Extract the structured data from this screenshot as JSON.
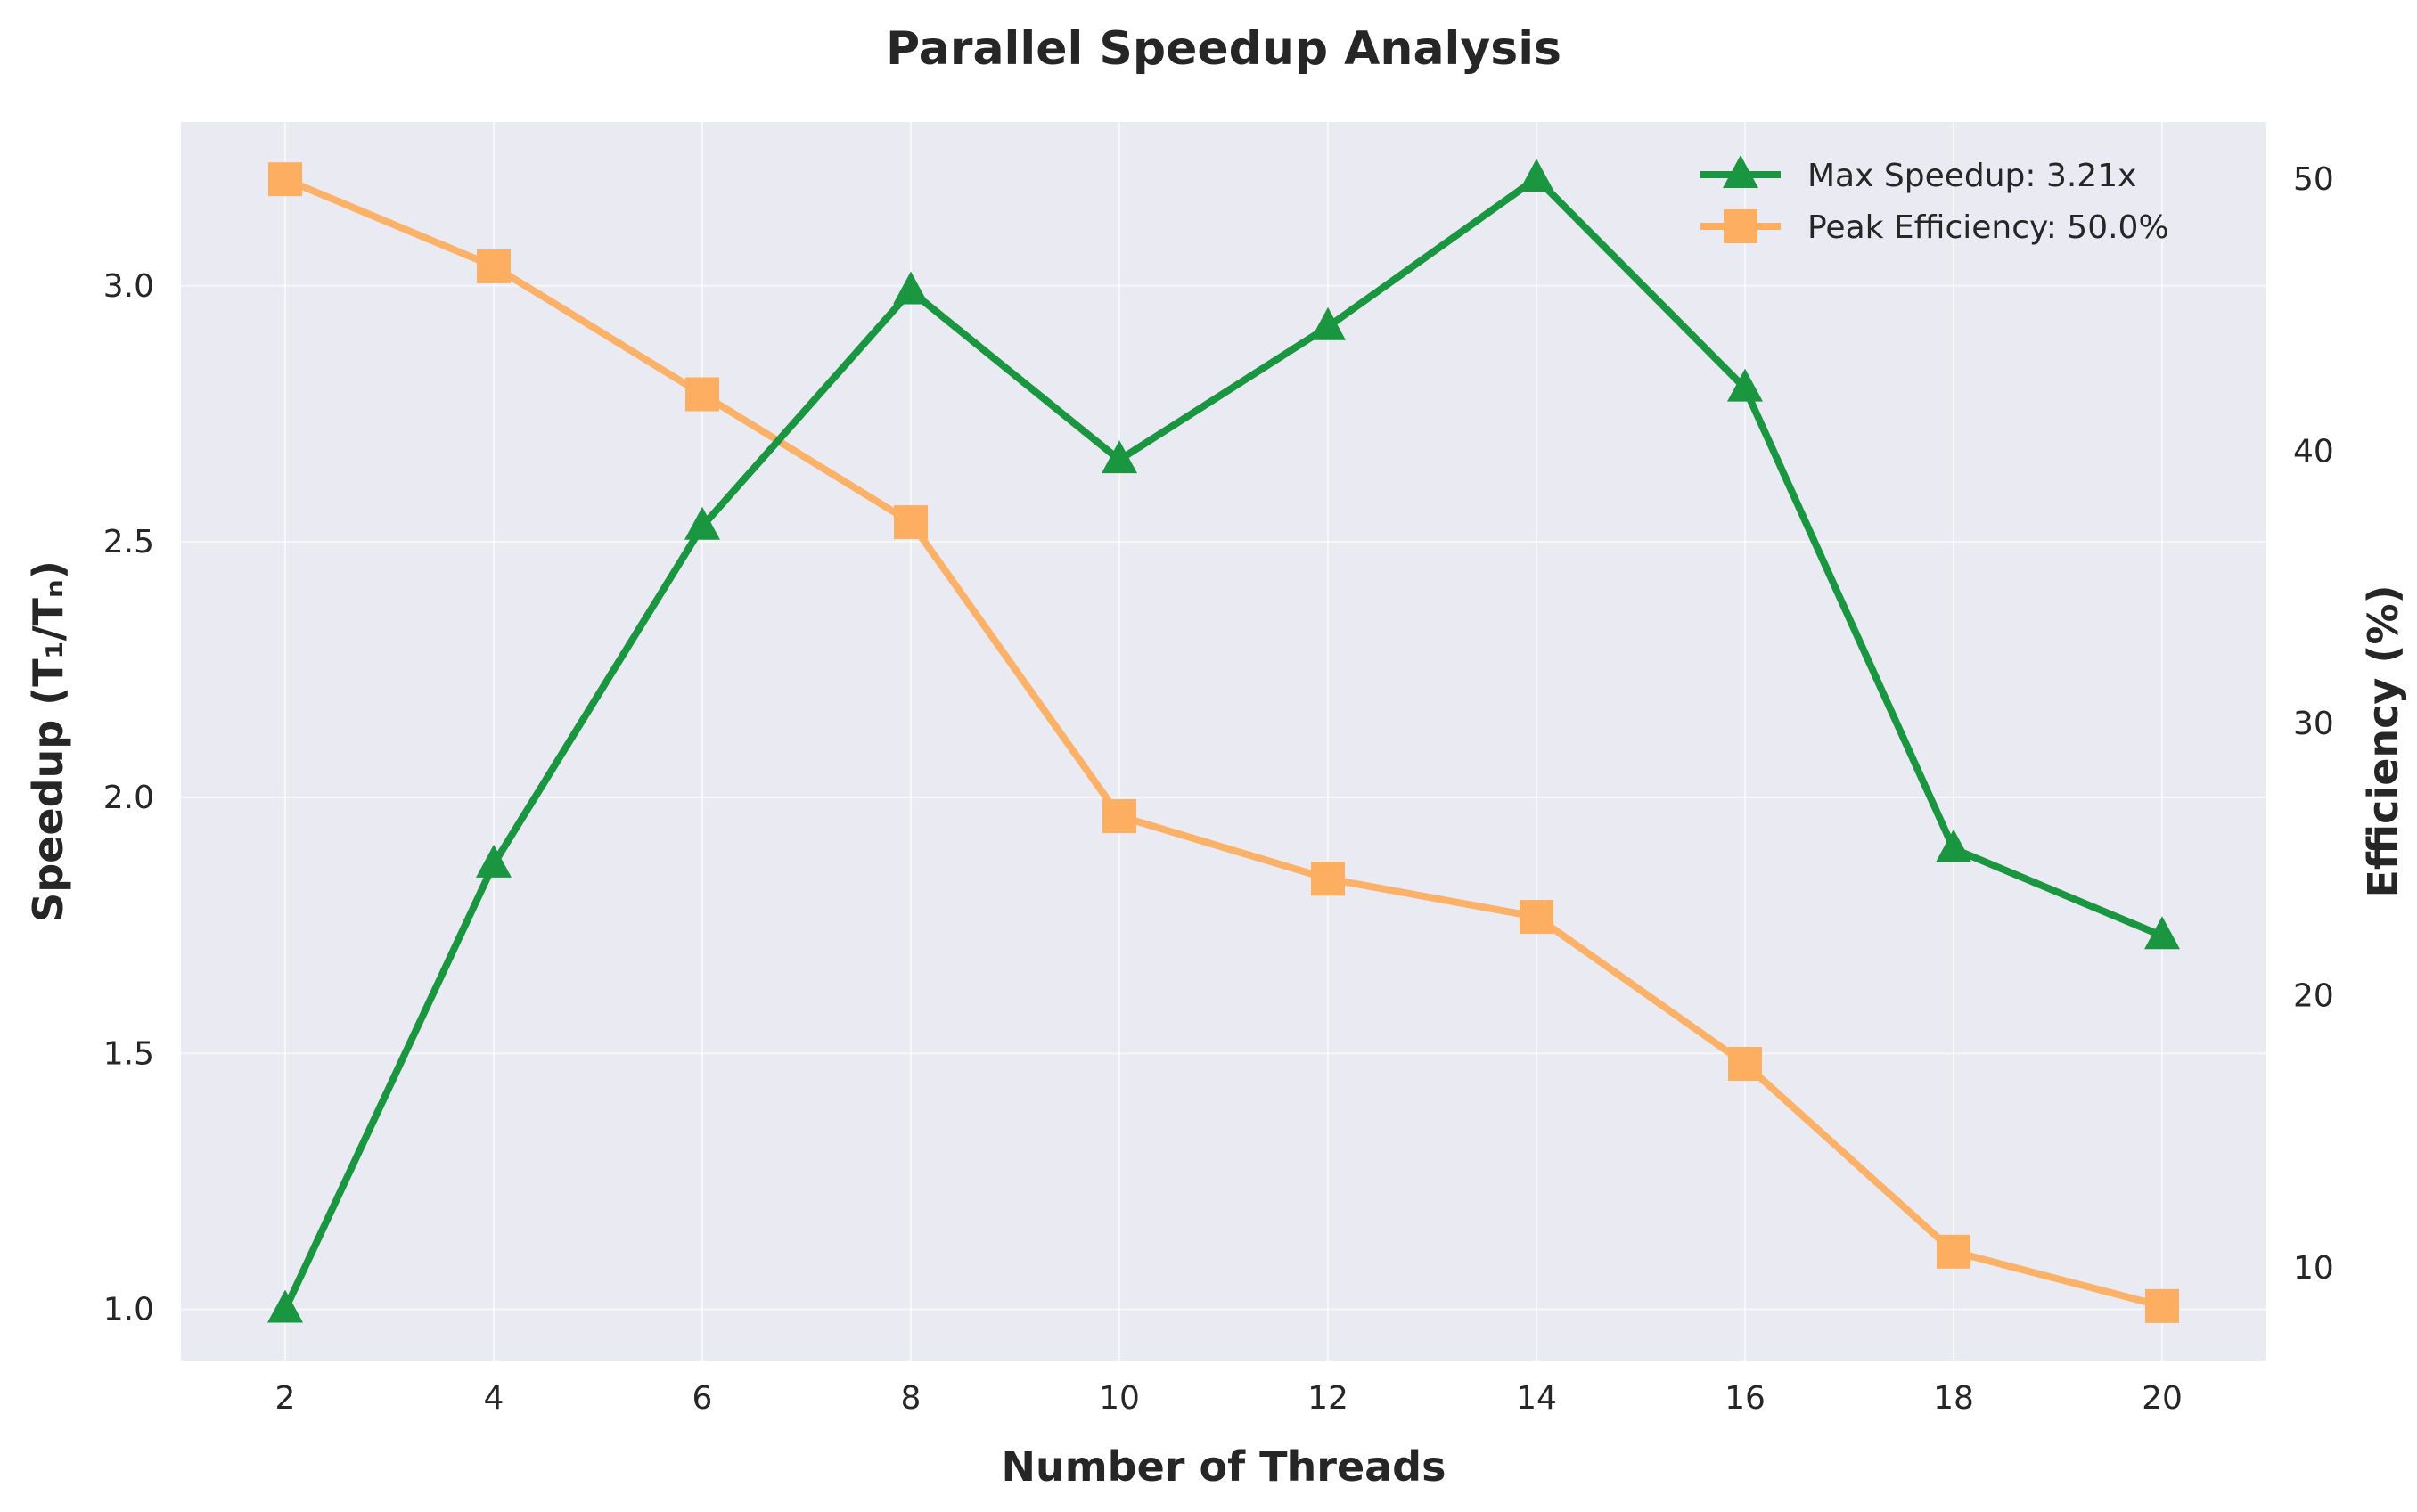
{
  "chart_data": {
    "type": "line",
    "title": "Parallel Speedup Analysis",
    "xlabel": "Number of Threads",
    "ylabel": "Speedup (T₁/Tₙ)",
    "y2label": "Efficiency (%)",
    "x": [
      2,
      4,
      6,
      8,
      10,
      12,
      14,
      16,
      18,
      20
    ],
    "xticks": [
      "2",
      "4",
      "6",
      "8",
      "10",
      "12",
      "14",
      "16",
      "18",
      "20"
    ],
    "xlim": [
      1,
      21
    ],
    "ylim": [
      0.9,
      3.32
    ],
    "yticks": [
      "1.0",
      "1.5",
      "2.0",
      "2.5",
      "3.0"
    ],
    "y2lim": [
      6.6,
      52.1
    ],
    "y2ticks": [
      "10",
      "20",
      "30",
      "40",
      "50"
    ],
    "grid": true,
    "legend_position": "top-right",
    "series": [
      {
        "name": "Max Speedup: 3.21x",
        "axis": "left",
        "marker": "triangle",
        "color": "#1a9641",
        "values": [
          1.0,
          1.87,
          2.53,
          2.99,
          2.66,
          2.92,
          3.21,
          2.8,
          1.9,
          1.73
        ]
      },
      {
        "name": "Peak Efficiency: 50.0%",
        "axis": "right",
        "marker": "square",
        "color": "#fdae61",
        "values": [
          50.0,
          46.8,
          42.1,
          37.4,
          26.6,
          24.3,
          22.9,
          17.5,
          10.6,
          8.6
        ]
      }
    ]
  }
}
